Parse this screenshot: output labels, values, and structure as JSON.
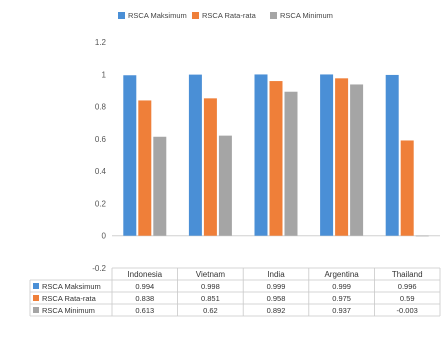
{
  "chart_data": {
    "type": "bar",
    "categories": [
      "Indonesia",
      "Vietnam",
      "India",
      "Argentina",
      "Thailand"
    ],
    "series": [
      {
        "name": "RSCA Maksimum",
        "color": "#4a8fd6",
        "values": [
          0.994,
          0.998,
          0.999,
          0.999,
          0.996
        ],
        "labels": [
          "0.994",
          "0.998",
          "0.999",
          "0.999",
          "0.996"
        ]
      },
      {
        "name": "RSCA Rata-rata",
        "color": "#ef7f39",
        "values": [
          0.838,
          0.851,
          0.958,
          0.975,
          0.59
        ],
        "labels": [
          "0.838",
          "0.851",
          "0.958",
          "0.975",
          "0.59"
        ]
      },
      {
        "name": "RSCA Minimum",
        "color": "#a5a5a5",
        "values": [
          0.613,
          0.62,
          0.892,
          0.937,
          -0.003
        ],
        "labels": [
          "0.613",
          "0.62",
          "0.892",
          "0.937",
          "-0.003"
        ]
      }
    ],
    "ylim": [
      -0.2,
      1.2
    ],
    "yticks": [
      "-0.2",
      "0",
      "0.2",
      "0.4",
      "0.6",
      "0.8",
      "1",
      "1.2"
    ],
    "legend_position": "top",
    "grid": false,
    "data_table": true
  }
}
